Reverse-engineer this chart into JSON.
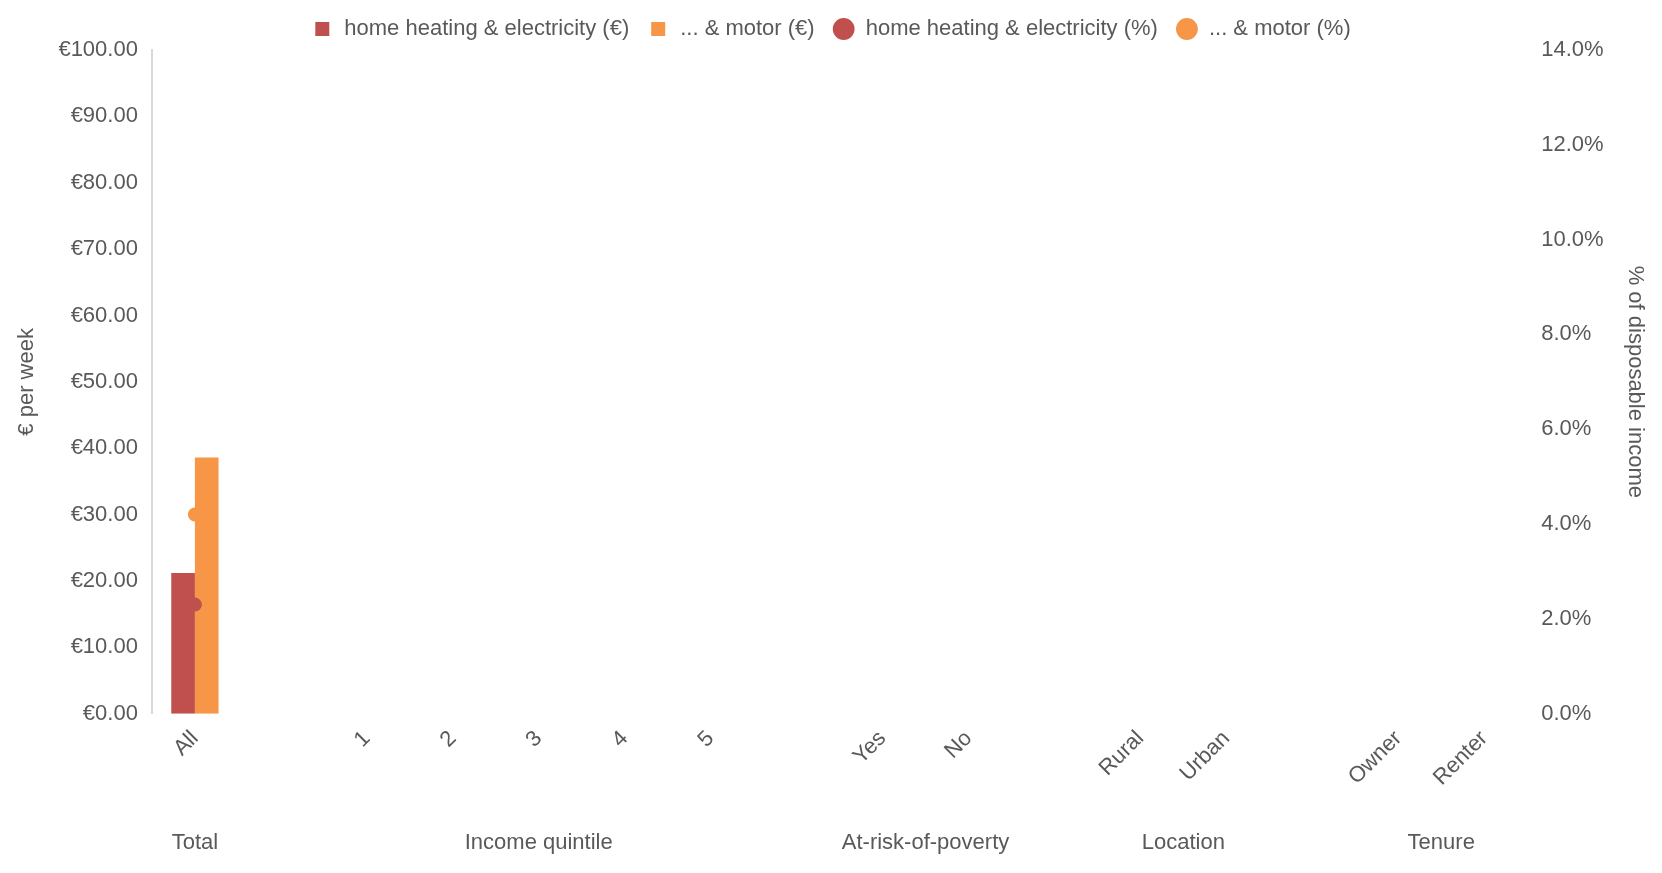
{
  "chart_data": {
    "type": "bar",
    "categories": [
      "All",
      null,
      "1",
      "2",
      "3",
      "4",
      "5",
      null,
      "Yes",
      "No",
      null,
      "Rural",
      "Urban",
      null,
      "Owner",
      "Renter"
    ],
    "series": [
      {
        "name": "home heating & electricity (€)",
        "color": "#c0504d",
        "values": [
          21.2,
          null,
          null,
          null,
          null,
          null,
          null,
          null,
          null,
          null,
          null,
          null,
          null,
          null,
          null,
          null
        ]
      },
      {
        "name": "... & motor (€)",
        "color": "#f79646",
        "values": [
          38.6,
          null,
          null,
          null,
          null,
          null,
          null,
          null,
          null,
          null,
          null,
          null,
          null,
          null,
          null,
          null
        ]
      },
      {
        "name": "home heating & electricity (%)",
        "type": "line",
        "axis": "y2",
        "color": "#c0504d",
        "values": [
          2.3,
          null,
          null,
          null,
          null,
          null,
          null,
          null,
          null,
          null,
          null,
          null,
          null,
          null,
          null,
          null
        ]
      },
      {
        "name": "... & motor (%)",
        "type": "line",
        "axis": "y2",
        "color": "#f79646",
        "values": [
          4.2,
          null,
          null,
          null,
          null,
          null,
          null,
          null,
          null,
          null,
          null,
          null,
          null,
          null,
          null,
          null
        ]
      }
    ],
    "ylabel": "€ per week",
    "y2label": "% of disposable income",
    "ylim": [
      0,
      100
    ],
    "yticks": [
      {
        "value": 0,
        "label": "€0.00"
      },
      {
        "value": 10,
        "label": "€10.00"
      },
      {
        "value": 20,
        "label": "€20.00"
      },
      {
        "value": 30,
        "label": "€30.00"
      },
      {
        "value": 40,
        "label": "€40.00"
      },
      {
        "value": 50,
        "label": "€50.00"
      },
      {
        "value": 60,
        "label": "€60.00"
      },
      {
        "value": 70,
        "label": "€70.00"
      },
      {
        "value": 80,
        "label": "€80.00"
      },
      {
        "value": 90,
        "label": "€90.00"
      },
      {
        "value": 100,
        "label": "€100.00"
      }
    ],
    "y2lim": [
      0,
      14
    ],
    "y2ticks": [
      {
        "value": 0,
        "label": "0.0%"
      },
      {
        "value": 2,
        "label": "2.0%"
      },
      {
        "value": 4,
        "label": "4.0%"
      },
      {
        "value": 6,
        "label": "6.0%"
      },
      {
        "value": 8,
        "label": "8.0%"
      },
      {
        "value": 10,
        "label": "10.0%"
      },
      {
        "value": 12,
        "label": "12.0%"
      },
      {
        "value": 14,
        "label": "14.0%"
      }
    ],
    "annotations": [
      "Total",
      "Income quintile",
      "At-risk-of-poverty",
      "Location",
      "Tenure"
    ],
    "grid": false,
    "legend": "top",
    "marker": "circle"
  }
}
